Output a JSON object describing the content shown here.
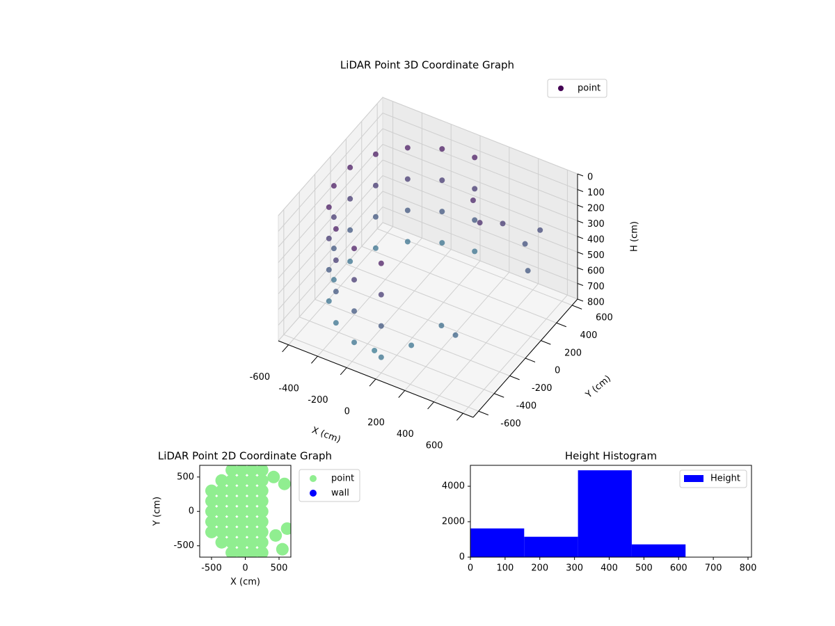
{
  "chart_data": [
    {
      "type": "scatter3d",
      "title": "LiDAR Point 3D Coordinate Graph",
      "xlabel": "X (cm)",
      "ylabel": "Y (cm)",
      "zlabel": "H (cm)",
      "xlim": [
        -670,
        670
      ],
      "ylim": [
        -670,
        670
      ],
      "zlim": [
        0,
        800
      ],
      "z_inverted": true,
      "xticks": [
        -600,
        -400,
        -200,
        0,
        200,
        400,
        600
      ],
      "yticks": [
        -600,
        -400,
        -200,
        0,
        200,
        400,
        600
      ],
      "zticks": [
        0,
        100,
        200,
        300,
        400,
        500,
        600,
        700,
        800
      ],
      "legend": "upper right",
      "grid": true,
      "color_range": [
        "#440154",
        "#2a788e"
      ],
      "series": [
        {
          "name": "point",
          "color": "#440154",
          "x": [
            0,
            -205,
            -386,
            -520,
            -591,
            -591,
            -520,
            -386,
            -205,
            0,
            0,
            -205,
            -386,
            -520,
            -591,
            -591,
            -520,
            -386,
            -205,
            0,
            0,
            -205,
            -386,
            -520,
            -591,
            -591,
            -520,
            -386,
            -205,
            0,
            0,
            -205,
            -386,
            -520,
            -591,
            -591,
            -520,
            -386,
            -205,
            0,
            300,
            400,
            500,
            200,
            100,
            350,
            450,
            -100,
            150,
            250
          ],
          "y": [
            600,
            564,
            460,
            300,
            104,
            -104,
            -300,
            -460,
            -564,
            -600,
            600,
            564,
            460,
            300,
            104,
            -104,
            -300,
            -460,
            -564,
            -600,
            600,
            564,
            460,
            300,
            104,
            -104,
            -300,
            -460,
            -564,
            -600,
            600,
            564,
            460,
            300,
            104,
            -104,
            -300,
            -460,
            -564,
            -600,
            400,
            500,
            350,
            -200,
            -400,
            -300,
            600,
            -500,
            300,
            200
          ],
          "z": [
            100,
            100,
            100,
            100,
            100,
            100,
            100,
            100,
            100,
            100,
            300,
            300,
            300,
            300,
            300,
            300,
            300,
            300,
            300,
            300,
            500,
            500,
            500,
            500,
            500,
            500,
            500,
            500,
            500,
            500,
            700,
            700,
            700,
            700,
            700,
            700,
            700,
            700,
            700,
            700,
            300,
            450,
            500,
            650,
            700,
            600,
            400,
            750,
            150,
            200
          ]
        }
      ]
    },
    {
      "type": "scatter",
      "title": "LiDAR Point 2D Coordinate Graph",
      "xlabel": "X (cm)",
      "ylabel": "Y (cm)",
      "xlim": [
        -675,
        675
      ],
      "ylim": [
        -665,
        670
      ],
      "xticks": [
        -500,
        0,
        500
      ],
      "yticks": [
        -500,
        0,
        500
      ],
      "legend": "outside right",
      "series": [
        {
          "name": "point",
          "color": "#90ee90",
          "x": [
            -500,
            -500,
            -500,
            -500,
            -500,
            -350,
            -350,
            -350,
            -350,
            -350,
            -350,
            -350,
            -200,
            -200,
            -200,
            -200,
            -200,
            -200,
            -200,
            -200,
            -200,
            -50,
            -50,
            -50,
            -50,
            -50,
            -50,
            -50,
            -50,
            -50,
            100,
            100,
            100,
            100,
            100,
            100,
            100,
            100,
            100,
            250,
            250,
            250,
            250,
            250,
            250,
            250,
            250,
            250,
            420,
            580,
            450,
            550,
            620
          ],
          "y": [
            -300,
            -150,
            0,
            150,
            300,
            -450,
            -300,
            -150,
            0,
            150,
            300,
            450,
            -600,
            -450,
            -300,
            -150,
            0,
            150,
            300,
            450,
            600,
            -600,
            -450,
            -300,
            -150,
            0,
            150,
            300,
            450,
            600,
            -600,
            -450,
            -300,
            -150,
            0,
            150,
            300,
            450,
            600,
            -600,
            -450,
            -300,
            -150,
            0,
            150,
            300,
            450,
            600,
            500,
            400,
            -350,
            -550,
            -250
          ]
        },
        {
          "name": "wall",
          "color": "#0000ff",
          "x": [],
          "y": []
        }
      ]
    },
    {
      "type": "histogram",
      "title": "Height Histogram",
      "bins": [
        0,
        155,
        310,
        465,
        620,
        775
      ],
      "values": [
        1620,
        1150,
        4900,
        720,
        15
      ],
      "xlim": [
        0,
        810
      ],
      "ylim": [
        0,
        5180
      ],
      "xticks": [
        0,
        100,
        200,
        300,
        400,
        500,
        600,
        700,
        800
      ],
      "yticks": [
        0,
        2000,
        4000
      ],
      "legend": "upper right",
      "series_name": "Height",
      "color": "#0000ff"
    }
  ]
}
